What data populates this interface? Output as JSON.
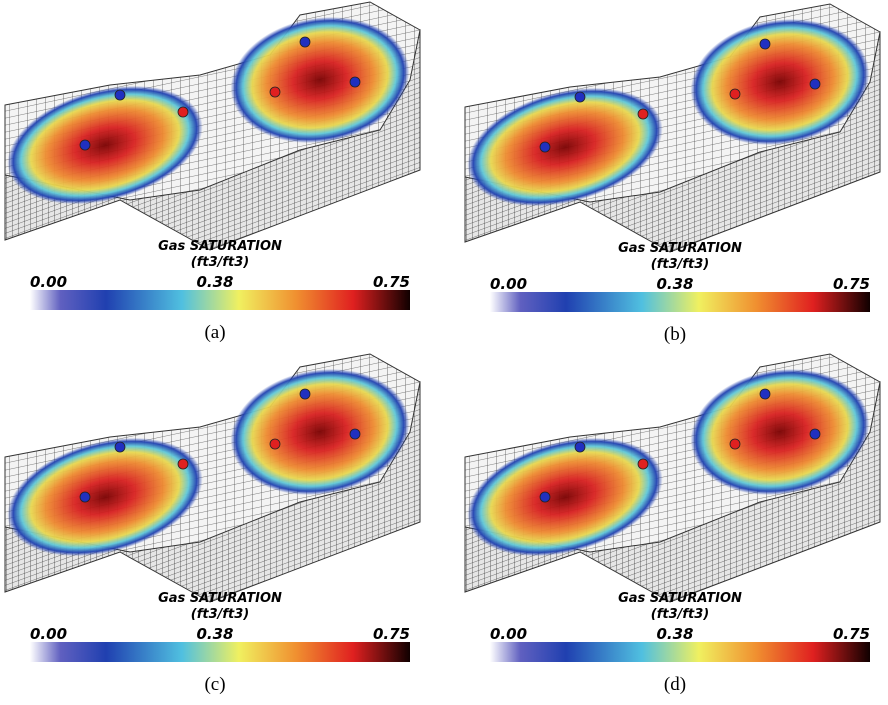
{
  "panels": [
    {
      "title": "Gas SATURATION",
      "unit": "(ft3/ft3)",
      "ticks": [
        "0.00",
        "0.38",
        "0.75"
      ],
      "caption": "(a)"
    },
    {
      "title": "Gas SATURATION",
      "unit": "(ft3/ft3)",
      "ticks": [
        "0.00",
        "0.38",
        "0.75"
      ],
      "caption": "(b)"
    },
    {
      "title": "Gas SATURATION",
      "unit": "(ft3/ft3)",
      "ticks": [
        "0.00",
        "0.38",
        "0.75"
      ],
      "caption": "(c)"
    },
    {
      "title": "Gas SATURATION",
      "unit": "(ft3/ft3)",
      "ticks": [
        "0.00",
        "0.38",
        "0.75"
      ],
      "caption": "(d)"
    }
  ]
}
